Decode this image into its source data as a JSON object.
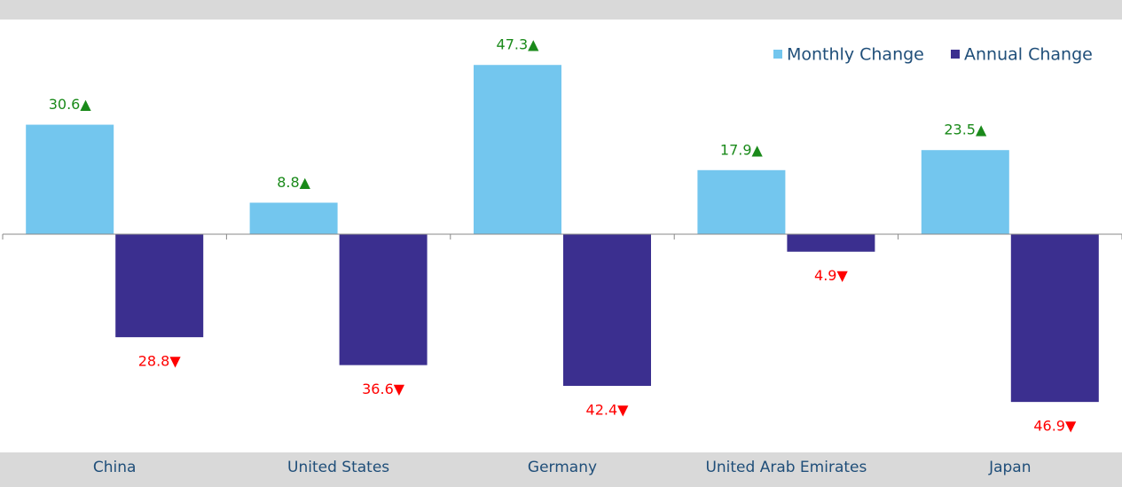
{
  "chart_data": {
    "type": "bar",
    "categories": [
      "China",
      "United States",
      "Germany",
      "United Arab Emirates",
      "Japan"
    ],
    "series": [
      {
        "name": "Monthly Change",
        "color": "#73c6ee",
        "label_color": "#1a8a1a",
        "values": [
          30.6,
          8.8,
          47.3,
          17.9,
          23.5
        ],
        "value_labels": [
          "30.6▲",
          "8.8▲",
          "47.3▲",
          "17.9▲",
          "23.5▲"
        ]
      },
      {
        "name": "Annual Change",
        "color": "#3b2f8f",
        "label_color": "#ff0000",
        "values": [
          -28.8,
          -36.6,
          -42.4,
          -4.9,
          -46.9
        ],
        "value_labels": [
          "28.8▼",
          "36.6▼",
          "42.4▼",
          "4.9▼",
          "46.9▼"
        ]
      }
    ],
    "ylim": [
      -61,
      60
    ],
    "legend": "top-right"
  }
}
